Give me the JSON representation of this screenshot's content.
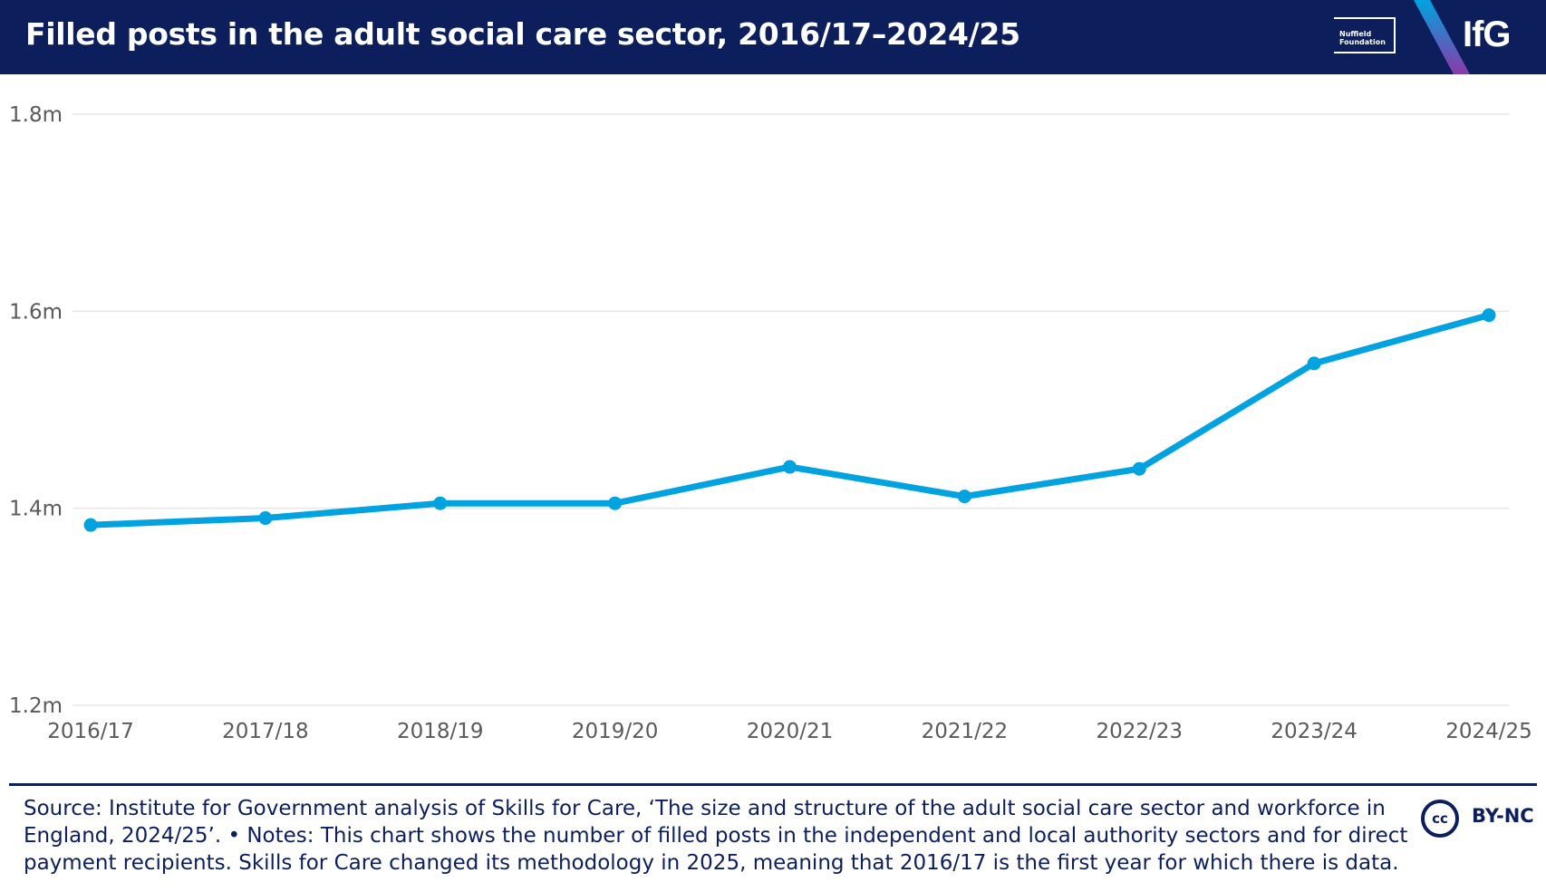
{
  "header": {
    "title": "Filled posts in the adult social care sector, 2016/17–2024/25",
    "nuffield_logo_text": "Nuffield Foundation",
    "ifg_logo_text": "IfG"
  },
  "colors": {
    "header_bg": "#0c1f5c",
    "line": "#00a3e0",
    "grid": "#e6e6e6",
    "text_dark": "#0c1f5c"
  },
  "chart_data": {
    "type": "line",
    "title": "Filled posts in the adult social care sector, 2016/17–2024/25",
    "xlabel": "",
    "ylabel": "",
    "categories": [
      "2016/17",
      "2017/18",
      "2018/19",
      "2019/20",
      "2020/21",
      "2021/22",
      "2022/23",
      "2023/24",
      "2024/25"
    ],
    "series": [
      {
        "name": "Filled posts",
        "values": [
          1.383,
          1.39,
          1.405,
          1.405,
          1.442,
          1.412,
          1.44,
          1.547,
          1.596
        ]
      }
    ],
    "ylim": [
      1.2,
      1.8
    ],
    "yticks": [
      1.2,
      1.4,
      1.6,
      1.8
    ],
    "ytick_labels": [
      "1.2m",
      "1.4m",
      "1.6m",
      "1.8m"
    ],
    "grid": true,
    "legend": "none"
  },
  "footer": {
    "source_text": "Source: Institute for Government analysis of Skills for Care, ‘The size and structure of the adult social care sector and workforce in England, 2024/25’. • Notes: This chart shows the number of filled posts in the independent and local authority sectors and for direct payment recipients. Skills for Care changed its methodology in 2025, meaning that 2016/17 is the first year for which there is data.",
    "license_icon_text": "cc",
    "license_text": "BY-NC"
  }
}
